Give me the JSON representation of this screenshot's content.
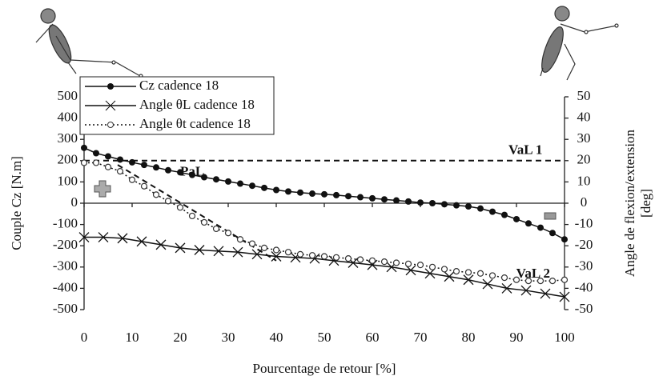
{
  "chart_data": {
    "type": "line",
    "xlabel": "Pourcentage de retour [%]",
    "ylabel": "Couple Cz [N.m]",
    "y2label": [
      "Angle de flexion/extension",
      "[deg]"
    ],
    "xlim": [
      0,
      100
    ],
    "xticks": [
      0,
      10,
      20,
      30,
      40,
      50,
      60,
      70,
      80,
      90,
      100
    ],
    "ylim": [
      -500,
      500
    ],
    "yticks": [
      -500,
      -400,
      -300,
      -200,
      -100,
      0,
      100,
      200,
      300,
      400,
      500
    ],
    "y2lim": [
      -50,
      50
    ],
    "y2ticks": [
      -50,
      -40,
      -30,
      -20,
      -10,
      0,
      10,
      20,
      30,
      40,
      50
    ],
    "legend": "top-left",
    "series": [
      {
        "name": "Cz cadence 18",
        "color": "#111",
        "marker": "dot",
        "line": "solid",
        "x": [
          0,
          2.5,
          5,
          7.5,
          10,
          12.5,
          15,
          17.5,
          20,
          22.5,
          25,
          27.5,
          30,
          32.5,
          35,
          37.5,
          40,
          42.5,
          45,
          47.5,
          50,
          52.5,
          55,
          57.5,
          60,
          62.5,
          65,
          67.5,
          70,
          72.5,
          75,
          77.5,
          80,
          82.5,
          85,
          87.5,
          90,
          92.5,
          95,
          97.5,
          100
        ],
        "values": [
          260,
          235,
          220,
          205,
          192,
          180,
          168,
          155,
          145,
          133,
          122,
          112,
          102,
          92,
          82,
          72,
          62,
          55,
          50,
          45,
          42,
          38,
          33,
          28,
          23,
          18,
          13,
          8,
          3,
          0,
          -5,
          -10,
          -15,
          -25,
          -40,
          -55,
          -75,
          -95,
          -115,
          -140,
          -170
        ]
      },
      {
        "name": "Angle θL cadence 18",
        "color": "#111",
        "marker": "cross",
        "line": "solid",
        "axis": "y2",
        "x": [
          0,
          4,
          8,
          12,
          16,
          20,
          24,
          28,
          32,
          36,
          40,
          44,
          48,
          52,
          56,
          60,
          64,
          68,
          72,
          76,
          80,
          84,
          88,
          92,
          96,
          100
        ],
        "values": [
          -16,
          -16,
          -16.5,
          -18,
          -19.5,
          -21,
          -22,
          -22.5,
          -23,
          -24,
          -25,
          -25.5,
          -26,
          -27,
          -28,
          -29,
          -30,
          -31.5,
          -33,
          -34.5,
          -36,
          -38,
          -40,
          -41,
          -42.5,
          -44
        ]
      },
      {
        "name": "Angle θt cadence 18",
        "color": "#111",
        "marker": "circle",
        "line": "dotted",
        "axis": "y2",
        "x": [
          0,
          2.5,
          5,
          7.5,
          10,
          12.5,
          15,
          17.5,
          20,
          22.5,
          25,
          27.5,
          30,
          32.5,
          35,
          37.5,
          40,
          42.5,
          45,
          47.5,
          50,
          52.5,
          55,
          57.5,
          60,
          62.5,
          65,
          67.5,
          70,
          72.5,
          75,
          77.5,
          80,
          82.5,
          85,
          87.5,
          90,
          92.5,
          95,
          97.5,
          100
        ],
        "values": [
          19,
          19,
          17,
          15,
          11,
          8,
          4,
          1,
          -2,
          -6,
          -9,
          -12,
          -14,
          -17,
          -19,
          -21,
          -22,
          -23,
          -24,
          -24.5,
          -25,
          -25.5,
          -26,
          -26.5,
          -27,
          -27.5,
          -28,
          -28.5,
          -29,
          -30,
          -31,
          -32,
          -32.5,
          -33,
          -34,
          -35,
          -36,
          -36.5,
          -36.5,
          -36.5,
          -36
        ]
      }
    ],
    "reference_lines": [
      {
        "label": "VaL 1",
        "axis": "y2",
        "x": [
          0,
          100
        ],
        "values": [
          20,
          20
        ]
      },
      {
        "label": "PaL",
        "axis": "y2",
        "x": [
          7,
          40
        ],
        "values": [
          18,
          -27
        ]
      }
    ],
    "annotations": [
      {
        "text": "VaL 2",
        "x": 97,
        "y": -33.5,
        "axis": "y2"
      }
    ]
  }
}
